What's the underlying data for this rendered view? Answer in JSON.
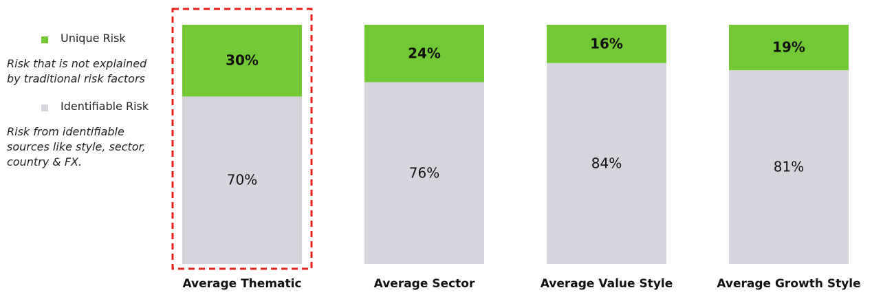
{
  "chart_data": {
    "type": "stacked_bar",
    "categories": [
      "Average Thematic",
      "Average Sector",
      "Average Value Style",
      "Average Growth Style"
    ],
    "series": [
      {
        "name": "Identifiable Risk",
        "description": "Risk from identifiable sources like style, sector, country & FX.",
        "color": "#d6d5de",
        "values": [
          70,
          76,
          84,
          81
        ],
        "value_labels": [
          "70%",
          "76%",
          "84%",
          "81%"
        ],
        "label_bold": false
      },
      {
        "name": "Unique Risk",
        "description": "Risk that is not explained by traditional risk factors",
        "color": "#72c935",
        "values": [
          30,
          24,
          16,
          19
        ],
        "value_labels": [
          "30%",
          "24%",
          "16%",
          "19%"
        ],
        "label_bold": true
      }
    ],
    "ylim": [
      0,
      100
    ],
    "highlight": 0,
    "highlight_color": "#e8201a",
    "legend": "left"
  }
}
